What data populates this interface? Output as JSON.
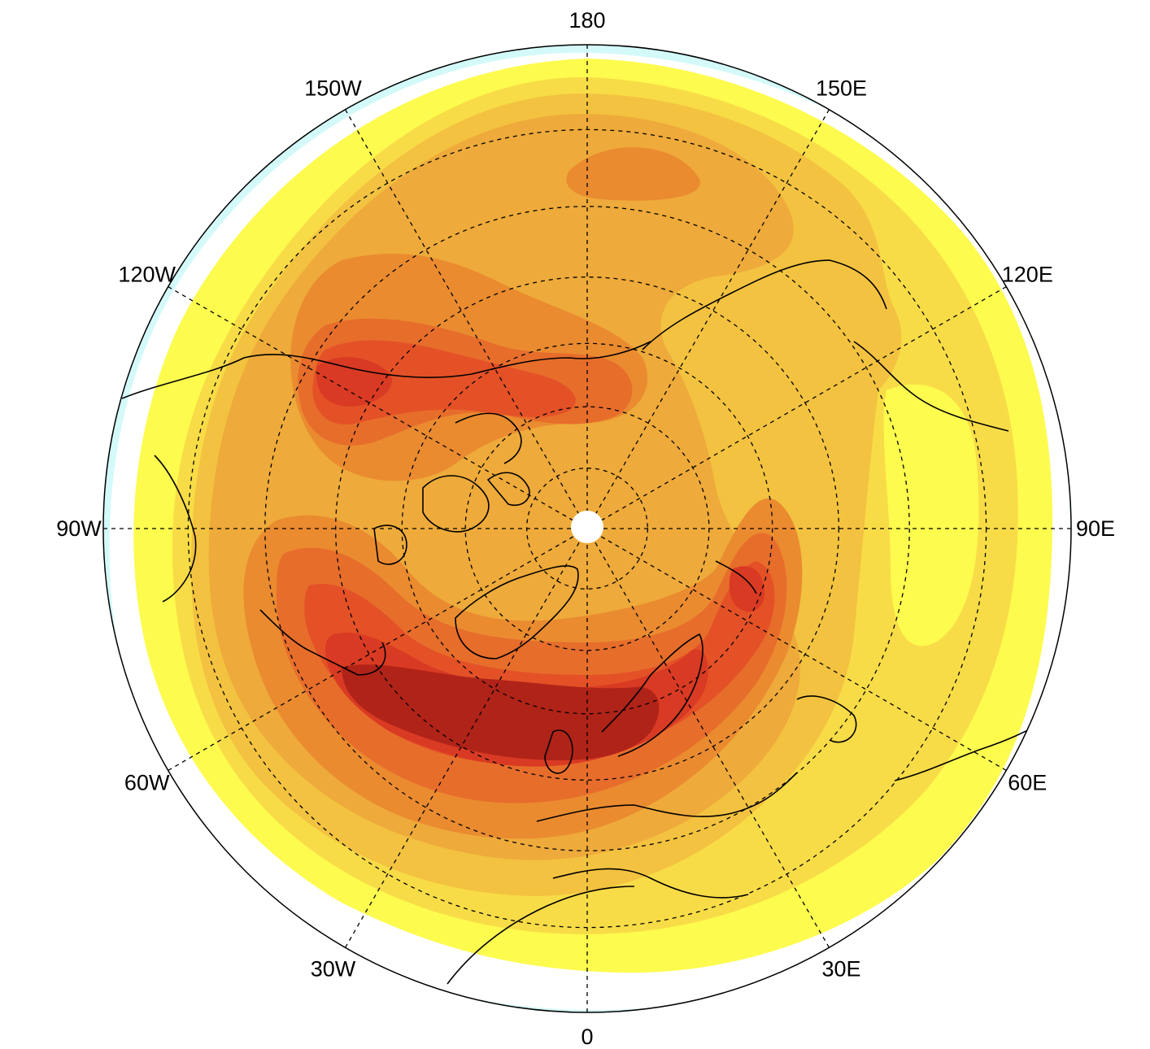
{
  "map": {
    "projection": "north-polar-stereographic",
    "center_longitude_bottom": "0",
    "longitude_labels": [
      {
        "key": "lon-180",
        "text": "180",
        "angle_deg": 180
      },
      {
        "key": "lon-150e",
        "text": "150E",
        "angle_deg": 150
      },
      {
        "key": "lon-120e",
        "text": "120E",
        "angle_deg": 120
      },
      {
        "key": "lon-90e",
        "text": "90E",
        "angle_deg": 90
      },
      {
        "key": "lon-60e",
        "text": "60E",
        "angle_deg": 60
      },
      {
        "key": "lon-30e",
        "text": "30E",
        "angle_deg": 30
      },
      {
        "key": "lon-0",
        "text": "0",
        "angle_deg": 0
      },
      {
        "key": "lon-30w",
        "text": "30W",
        "angle_deg": -30
      },
      {
        "key": "lon-60w",
        "text": "60W",
        "angle_deg": -60
      },
      {
        "key": "lon-90w",
        "text": "90W",
        "angle_deg": -90
      },
      {
        "key": "lon-120w",
        "text": "120W",
        "angle_deg": -120
      },
      {
        "key": "lon-150w",
        "text": "150W",
        "angle_deg": -150
      }
    ],
    "latitude_circles_deg": [
      80,
      70,
      60,
      50,
      40,
      30
    ],
    "colors": {
      "light-cyan": "#d4f9f9",
      "white": "#ffffff",
      "yellow": "#fdfb4e",
      "light-gold": "#f8dc47",
      "gold": "#f3c240",
      "light-orange": "#eeaa3a",
      "orange": "#ea8b30",
      "dark-orange": "#e76d2b",
      "red-orange": "#e45127",
      "red": "#d93a23",
      "dark-red": "#b02318"
    }
  }
}
